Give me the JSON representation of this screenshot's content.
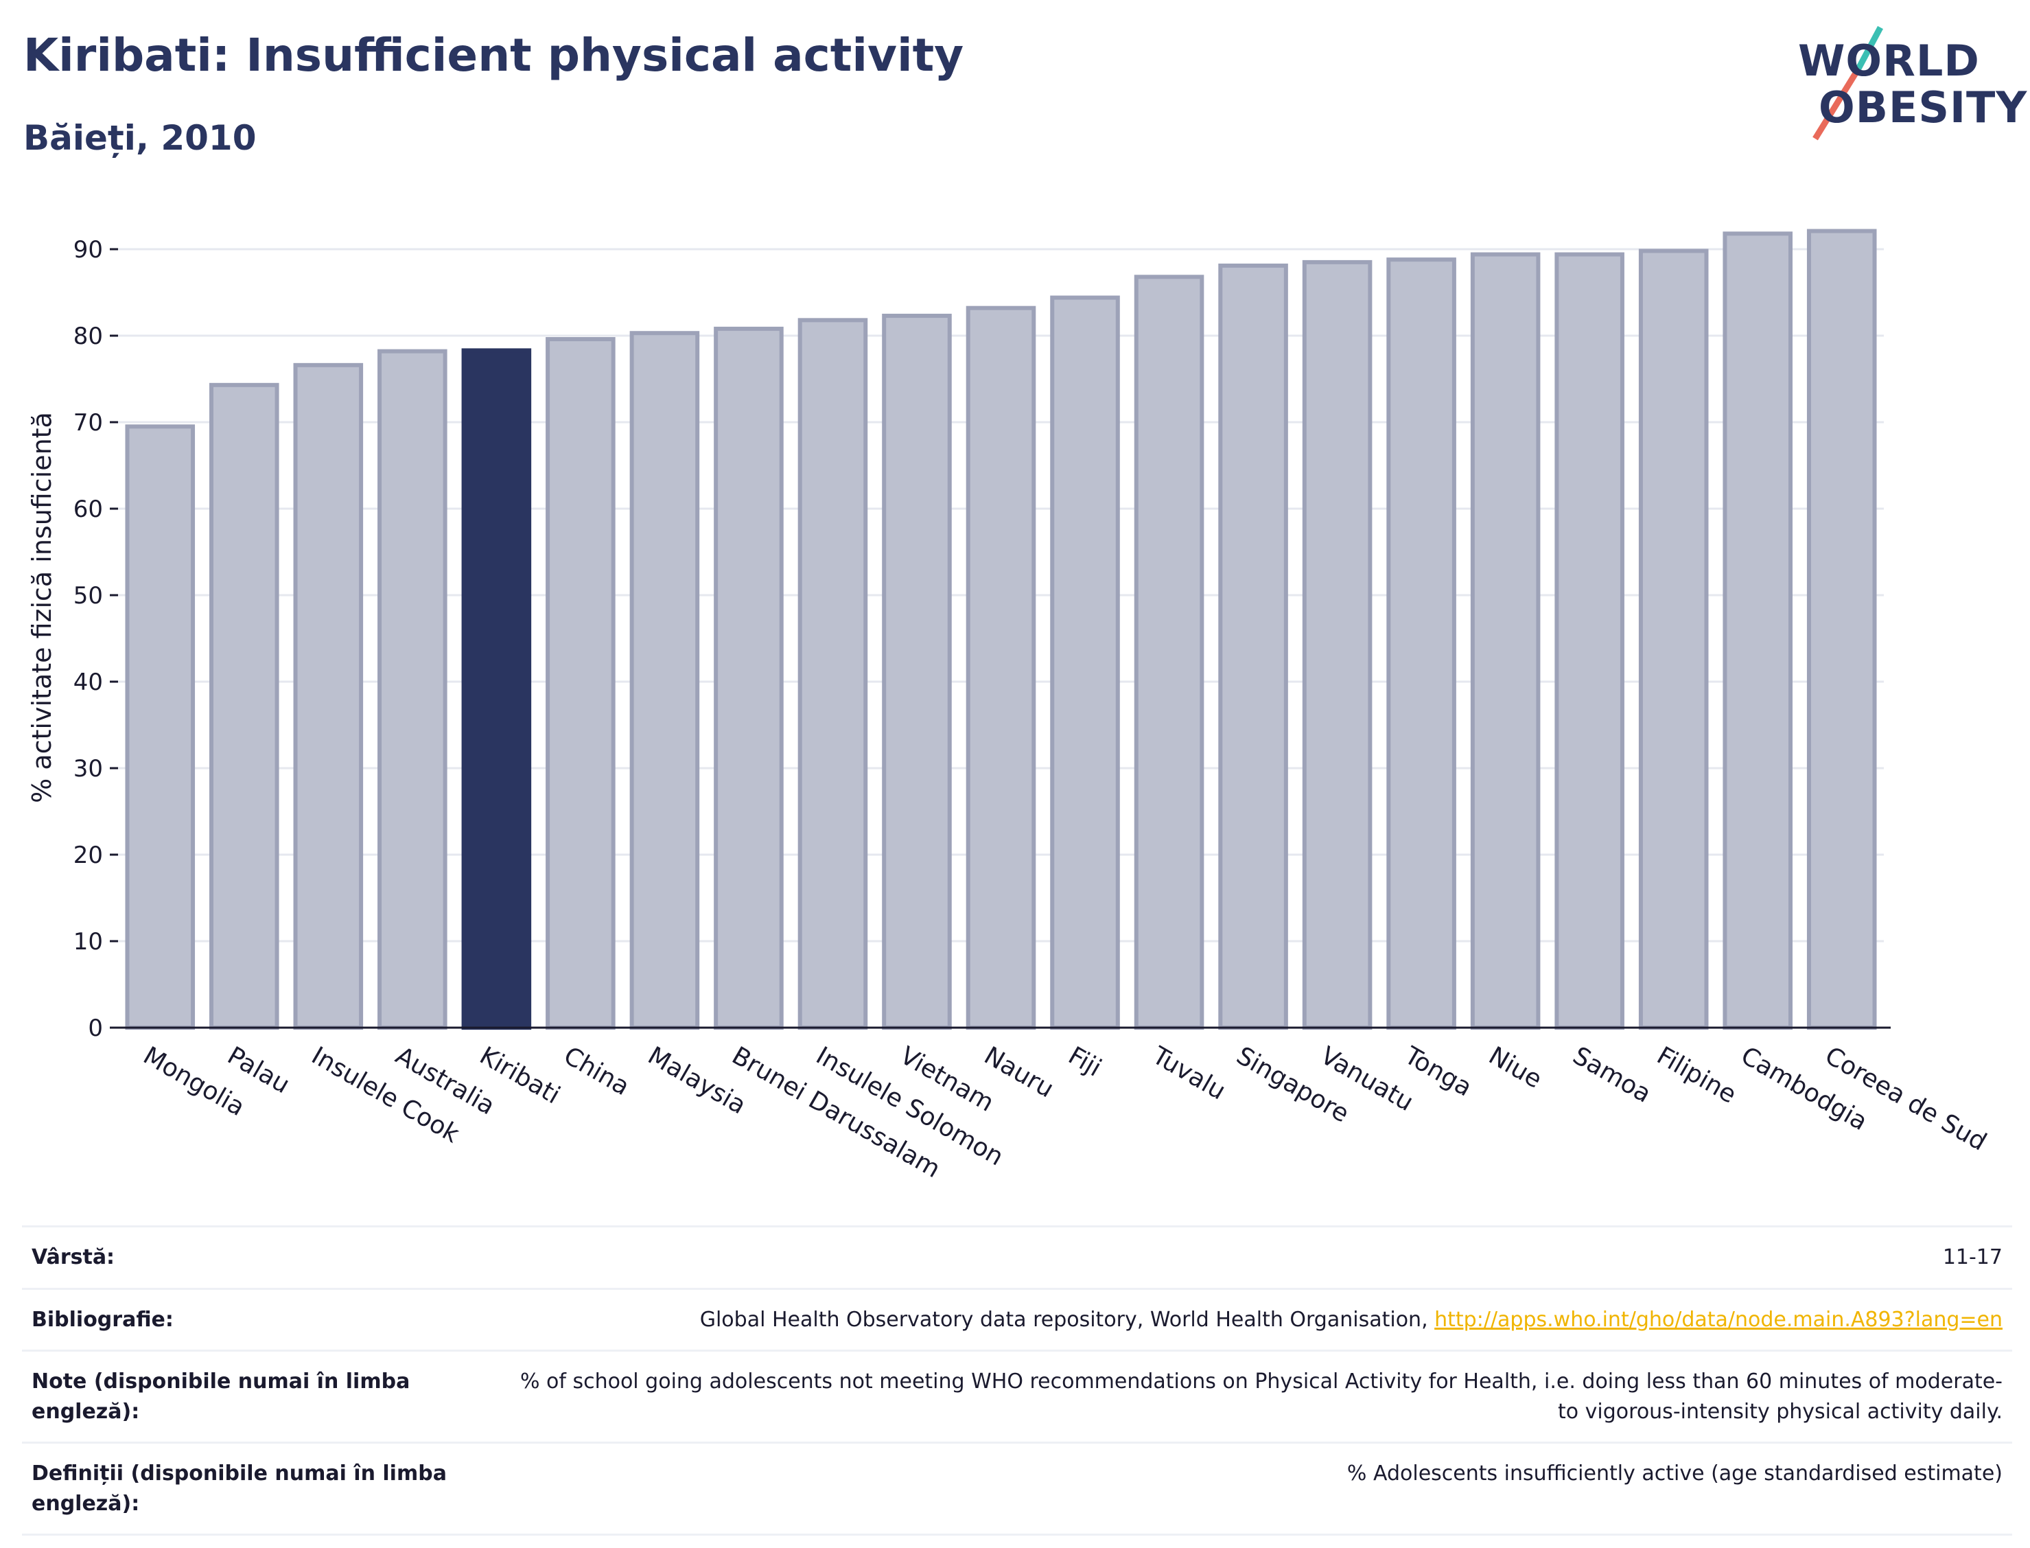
{
  "header": {
    "title": "Kiribati: Insufficient physical activity",
    "subtitle": "Băieți, 2010"
  },
  "logo": {
    "line1": "WORLD",
    "line2": "OBESITY"
  },
  "chart_data": {
    "type": "bar",
    "ylabel": "% activitate fizică insuficientă",
    "xlabel": "",
    "ylim": [
      0,
      95
    ],
    "yticks": [
      0,
      10,
      20,
      30,
      40,
      50,
      60,
      70,
      80,
      90
    ],
    "grid": true,
    "highlight": "Kiribati",
    "colors": {
      "bar": "#bcc0cf",
      "bar_edge": "#9da2b8",
      "highlight": "#2a3560",
      "grid": "#e6e8ef",
      "axis": "#1a1a2e"
    },
    "categories": [
      "Mongolia",
      "Palau",
      "Insulele Cook",
      "Australia",
      "Kiribati",
      "China",
      "Malaysia",
      "Brunei Darussalam",
      "Insulele Solomon",
      "Vietnam",
      "Nauru",
      "Fiji",
      "Tuvalu",
      "Singapore",
      "Vanuatu",
      "Tonga",
      "Niue",
      "Samoa",
      "Filipine",
      "Cambodgia",
      "Coreea de Sud"
    ],
    "values": [
      69.5,
      74.3,
      76.6,
      78.2,
      78.3,
      79.6,
      80.3,
      80.8,
      81.8,
      82.3,
      83.2,
      84.4,
      86.8,
      88.1,
      88.5,
      88.8,
      89.4,
      89.4,
      89.8,
      91.8,
      92.1
    ]
  },
  "meta": [
    {
      "label": "Vârstă:",
      "value": "11-17"
    },
    {
      "label": "Bibliografie:",
      "value": "Global Health Observatory data repository, World Health Organisation, ",
      "link": "http://apps.who.int/gho/data/node.main.A893?lang=en"
    },
    {
      "label": "Note (disponibile numai în limba engleză):",
      "value": "% of school going adolescents not meeting WHO recommendations on Physical Activity for Health, i.e. doing less than 60 minutes of moderate- to vigorous-intensity physical activity daily."
    },
    {
      "label": "Definiții (disponibile numai în limba engleză):",
      "value": "% Adolescents insufficiently active (age standardised estimate)"
    }
  ]
}
